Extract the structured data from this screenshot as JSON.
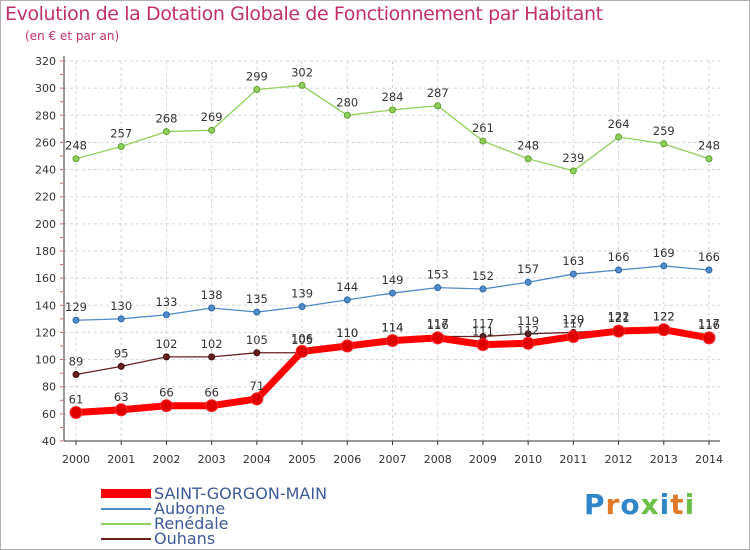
{
  "title": "Evolution de la Dotation Globale de Fonctionnement par Habitant",
  "subtitle": "(en € et par an)",
  "logo": {
    "text": "Proxiti",
    "colors": [
      "#2f87c8",
      "#e07a2a",
      "#2f87c8",
      "#6abf45",
      "#2f87c8",
      "#e07a2a",
      "#6abf45"
    ]
  },
  "chart_data": {
    "type": "line",
    "title": "Evolution de la Dotation Globale de Fonctionnement par Habitant",
    "ylabel": "(en € et par an)",
    "xlabel": "",
    "categories": [
      "2000",
      "2001",
      "2002",
      "2003",
      "2004",
      "2005",
      "2006",
      "2007",
      "2008",
      "2009",
      "2010",
      "2011",
      "2012",
      "2013",
      "2014"
    ],
    "ylim": [
      40,
      320
    ],
    "yticks": [
      "40",
      "60",
      "80",
      "100",
      "120",
      "140",
      "160",
      "180",
      "200",
      "220",
      "240",
      "260",
      "280",
      "300",
      "320"
    ],
    "grid": true,
    "series": [
      {
        "name": "SAINT-GORGON-MAIN",
        "color": "#ff0000",
        "values": [
          61,
          63,
          66,
          66,
          71,
          106,
          110,
          114,
          116,
          111,
          112,
          117,
          121,
          122,
          116
        ],
        "labels": [
          "61",
          "63",
          "66",
          "66",
          "71",
          "106",
          "110",
          "114",
          "116",
          "111",
          "112",
          "117",
          "121",
          "122",
          "116"
        ]
      },
      {
        "name": "Aubonne",
        "color": "#4f8bc9",
        "values": [
          129,
          130,
          133,
          138,
          135,
          139,
          144,
          149,
          153,
          152,
          157,
          163,
          166,
          169,
          166
        ],
        "labels": [
          "129",
          "130",
          "133",
          "138",
          "135",
          "139",
          "144",
          "149",
          "153",
          "152",
          "157",
          "163",
          "166",
          "169",
          "166"
        ]
      },
      {
        "name": "Renédale",
        "color": "#8fd05a",
        "values": [
          248,
          257,
          268,
          269,
          299,
          302,
          280,
          284,
          287,
          261,
          248,
          239,
          264,
          259,
          248
        ],
        "labels": [
          "248",
          "257",
          "268",
          "269",
          "299",
          "302",
          "280",
          "284",
          "287",
          "261",
          "248",
          "239",
          "264",
          "259",
          "248"
        ]
      },
      {
        "name": "Ouhans",
        "color": "#6b1f1f",
        "values": [
          89,
          95,
          102,
          102,
          105,
          105,
          110,
          114,
          117,
          117,
          119,
          120,
          122,
          122,
          117
        ],
        "labels": [
          "89",
          "95",
          "102",
          "102",
          "105",
          "105",
          "110",
          "114",
          "117",
          "117",
          "119",
          "120",
          "122",
          "122",
          "117"
        ]
      }
    ]
  }
}
